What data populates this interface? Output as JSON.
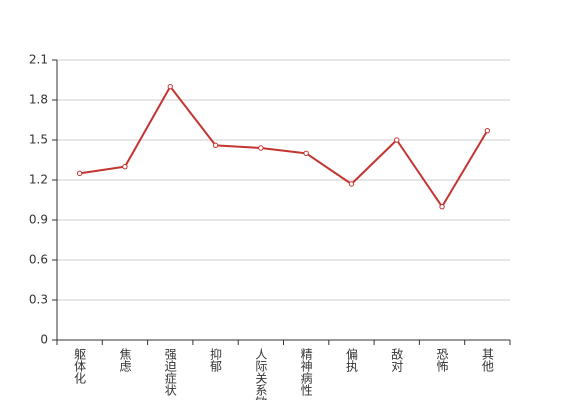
{
  "chart_data": {
    "type": "line",
    "categories": [
      "躯体化",
      "焦虑",
      "强迫症状",
      "抑郁",
      "人际关系敏感",
      "精神病性",
      "偏执",
      "敌对",
      "恐怖",
      "其他"
    ],
    "values": [
      1.25,
      1.3,
      1.9,
      1.46,
      1.44,
      1.4,
      1.17,
      1.5,
      1.0,
      1.57
    ],
    "color": "#c23531",
    "ylim": [
      0,
      2.1
    ],
    "yticks": [
      0,
      0.3,
      0.6,
      0.9,
      1.2,
      1.5,
      1.8,
      2.1
    ],
    "grid": true
  }
}
